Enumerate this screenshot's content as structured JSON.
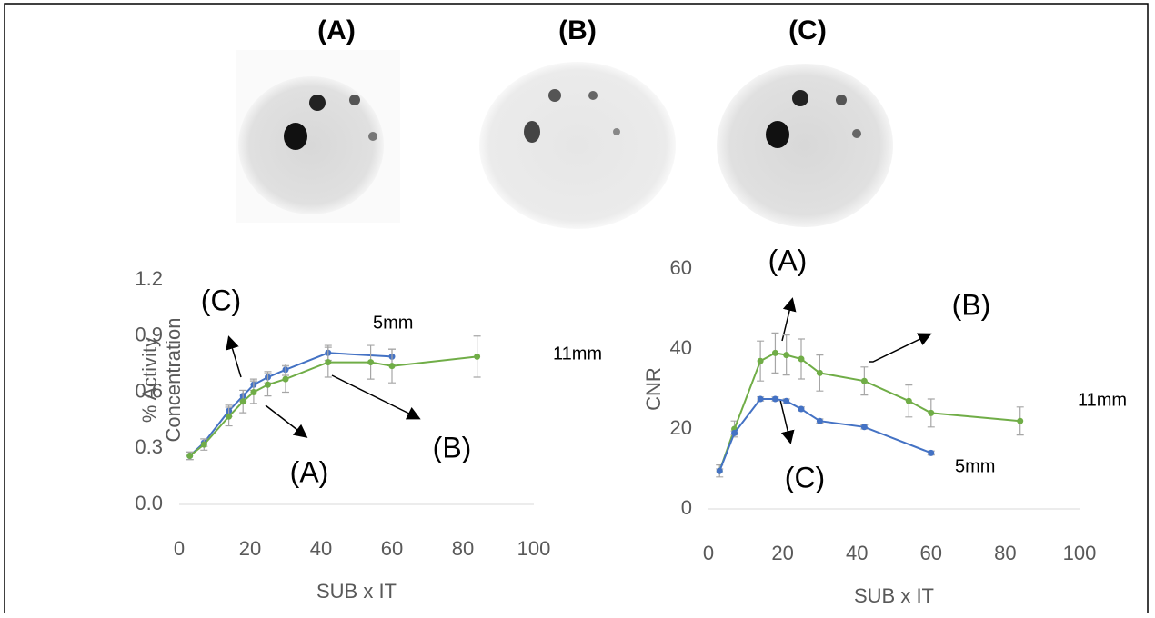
{
  "panels": [
    "(A)",
    "(B)",
    "(C)"
  ],
  "chart_data": [
    {
      "type": "line",
      "xlabel": "SUB x IT",
      "ylabel": "% Activity Concentration",
      "xlim": [
        0,
        100
      ],
      "xticks": [
        0,
        20,
        40,
        60,
        80,
        100
      ],
      "ylim": [
        0,
        1.2
      ],
      "yticks": [
        {
          "value": 0,
          "label": "0.0"
        },
        0.3,
        0.6,
        0.9,
        1.2
      ],
      "series": [
        {
          "name": "5mm",
          "color": "#4472c4",
          "x": [
            3,
            7,
            14,
            18,
            21,
            25,
            30,
            42,
            60
          ],
          "values": [
            0.26,
            0.33,
            0.5,
            0.58,
            0.64,
            0.68,
            0.72,
            0.81,
            0.79
          ],
          "errors": [
            0.02,
            0.02,
            0.03,
            0.03,
            0.03,
            0.03,
            0.03,
            0.04,
            0.04
          ]
        },
        {
          "name": "11mm",
          "color": "#70ad47",
          "x": [
            3,
            7,
            14,
            18,
            21,
            25,
            30,
            42,
            54,
            60,
            84
          ],
          "values": [
            0.26,
            0.32,
            0.47,
            0.55,
            0.6,
            0.64,
            0.67,
            0.76,
            0.76,
            0.74,
            0.79
          ],
          "errors": [
            0.02,
            0.03,
            0.05,
            0.06,
            0.06,
            0.06,
            0.07,
            0.08,
            0.09,
            0.09,
            0.11
          ]
        }
      ],
      "annotations": [
        "(C)",
        "(A)",
        "(B)"
      ]
    },
    {
      "type": "line",
      "xlabel": "SUB x IT",
      "ylabel": "CNR",
      "xlim": [
        0,
        100
      ],
      "xticks": [
        0,
        20,
        40,
        60,
        80,
        100
      ],
      "ylim": [
        0,
        60
      ],
      "yticks": [
        0,
        20,
        40,
        60
      ],
      "series": [
        {
          "name": "11mm",
          "color": "#70ad47",
          "x": [
            3,
            7,
            14,
            18,
            21,
            25,
            30,
            42,
            54,
            60,
            84
          ],
          "values": [
            9.5,
            20,
            37,
            39,
            38.5,
            37.5,
            34,
            32,
            27,
            24,
            22
          ],
          "errors": [
            1.5,
            2,
            5,
            5,
            5,
            5,
            4.5,
            3.5,
            4,
            3.5,
            3.5
          ]
        },
        {
          "name": "5mm",
          "color": "#4472c4",
          "x": [
            3,
            7,
            14,
            18,
            21,
            25,
            30,
            42,
            60
          ],
          "values": [
            9.5,
            19,
            27.5,
            27.5,
            27,
            25,
            22,
            20.5,
            14
          ],
          "errors": [
            0.5,
            0.5,
            0.5,
            0.5,
            0.5,
            0.5,
            0.5,
            0.5,
            0.5
          ]
        }
      ],
      "annotations": [
        "(A)",
        "(B)",
        "(C)"
      ]
    }
  ]
}
